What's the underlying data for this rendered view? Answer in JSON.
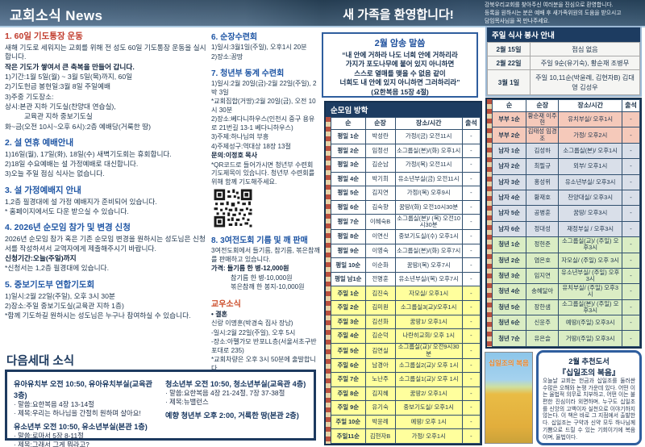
{
  "banner": {
    "left_title": "교회소식 News",
    "center_title": "새 가족을 환영합니다!",
    "right_lines": [
      {
        "t": "강북우리교회를 찾아주신 여러분을 진심으로 환영합니다."
      },
      {
        "t": "등록을 원하시는 분은 예배 후 새가족위원의 도움을 받으시고"
      },
      {
        "t": "담임목사님을 꼭 만나주세요."
      }
    ]
  },
  "left_sections": [
    {
      "heading": "1. 60일 기도통장 운동",
      "lines": [
        {
          "t": "새해 기도로 세워지는 교회를 위해 전 성도 60일 기도통장 운동을 실시합니다.",
          "c": ""
        },
        {
          "t": "작은 기도가 쌓여서 큰 축복을 만들어 갑니다.",
          "c": "bold"
        },
        {
          "t": "1)기간:1월 5일(월) ~ 3월 5일(목)까지, 60일",
          "c": ""
        },
        {
          "t": "2)기도헌금 봉헌일:3월 8일 주일예배",
          "c": ""
        },
        {
          "t": "3)주중 기도장소:",
          "c": ""
        },
        {
          "t": "상시:본관 지하 기도실(찬양대 연습실),",
          "c": ""
        },
        {
          "t": "교육관 지하 중보기도실",
          "c": "indent"
        },
        {
          "t": "화~금(오전 10시~오후 6시):2층 예배당(거룩한 땅)",
          "c": ""
        }
      ]
    },
    {
      "heading": "2. 설 연휴 예배안내",
      "lines": [
        {
          "t": "1)16일(월), 17일(화), 18일(수) 새벽기도회는 휴회합니다.",
          "c": ""
        },
        {
          "t": "2)18일 수요예배는 설 가정예배로 대신합니다.",
          "c": ""
        },
        {
          "t": "3)오늘 주일 점심 식사는 없습니다.",
          "c": ""
        }
      ]
    },
    {
      "heading": "3. 설 가정예배지 안내",
      "lines": [
        {
          "t": "1,2층 필경대에 설 가정 예배지가 준비되어 있습니다.",
          "c": ""
        },
        {
          "t": "* 홈페이지에서도 다운 받으실 수 있습니다.",
          "c": ""
        }
      ]
    },
    {
      "heading": "4. 2026년 순모임 참가 및 변경 신청",
      "lines": [
        {
          "t": "2026년 순모임 참가 혹은 기존 순모임 변경을 원하시는 성도님은 신청서를 작성하셔서 교역자에게 제출해주시기 바랍니다.",
          "c": ""
        },
        {
          "t": "신청기간:오늘(주일)까지",
          "c": "bold"
        },
        {
          "t": "*신청서는 1,2층 필경대에 있습니다.",
          "c": ""
        }
      ]
    },
    {
      "heading": "5. 중보기도부 연합기도회",
      "lines": [
        {
          "t": "1)일시:2월 22일(주일), 오후 3시 30분",
          "c": ""
        },
        {
          "t": "2)장소:주일 중보기도실(교육관 지하 1층)",
          "c": ""
        },
        {
          "t": "*함께 기도하길 원하시는 성도님은 누구나 참여하실 수 있습니다.",
          "c": ""
        }
      ]
    }
  ],
  "mid_sections": [
    {
      "heading": "6. 순장수련회",
      "lines": [
        {
          "t": "1)일시:3월1일(주일), 오후1시 20분",
          "c": ""
        },
        {
          "t": "2)장소:꿈땅",
          "c": ""
        }
      ]
    },
    {
      "heading": "7. 청년부 동계 수련회",
      "lines": [
        {
          "t": "1)일시:2월 20일(금)-2월 22일(주일), 2박 3일",
          "c": ""
        },
        {
          "t": "*교회집합(거땅):2월 20일(금), 오전 10시 30분",
          "c": ""
        },
        {
          "t": "2)장소:베다니하우스(인천시 중구 용유로 21번길 13-1 베다니하우스)",
          "c": ""
        },
        {
          "t": "3)주제:하나님의 부흥",
          "c": ""
        },
        {
          "t": "4)주제성구:역대상 18장 13절",
          "c": ""
        },
        {
          "t": "문의:이정호 목사",
          "c": "bold"
        },
        {
          "t": "*QR코드로 들어가시면 청년부 수련회 기도제목이 있습니다. 청년부 수련회를 위해 함께 기도해주세요.",
          "c": ""
        }
      ]
    }
  ],
  "sale_section": {
    "heading": "8. 3여전도회 기름 및 깨 판매",
    "lines": [
      {
        "t": "3여전도회에서 들기름, 참기름, 볶은참깨를 판매하고 있습니다.",
        "c": ""
      },
      {
        "t": "가격: 들기름 한 병-12,000원",
        "c": "bold"
      },
      {
        "t": "참기름 한 병-10,000원",
        "c": "indent"
      },
      {
        "t": "볶은참깨 한 봉지-10,000원",
        "c": "indent"
      }
    ]
  },
  "friends_news": {
    "heading": "교우소식",
    "lines": [
      {
        "t": "• 결혼",
        "c": "bold"
      },
      {
        "t": "신랑 이명훈(박경숙 집사 장남)",
        "c": ""
      },
      {
        "t": "-일시:2월 22일(주일), 오후 5시",
        "c": ""
      },
      {
        "t": "-장소:아펠가모 반포LL층(서울서초구반포대로 235)",
        "c": ""
      },
      {
        "t": "*교회차량은 오후 3시 50분에 출발합니다.",
        "c": ""
      }
    ]
  },
  "memory_verse": {
    "title": "2월 암송 말씀",
    "lines": [
      {
        "t": "“내 안에 거하라 나도 너희 안에 거하리라"
      },
      {
        "t": "가지가 포도나무에 붙어 있지 아니하면"
      },
      {
        "t": "스스로 열매를 맺을 수 없음 같이"
      },
      {
        "t": "너희도 내 안에 있지 아니하면 그러하리라”"
      },
      {
        "t": "(요한복음 15장 4절)"
      }
    ]
  },
  "meal_table": {
    "title": "주일 식사 봉사 안내",
    "rows": [
      {
        "date": "2월 15일",
        "detail": "점심 없음"
      },
      {
        "date": "2월 22일",
        "detail": "주일 9순(유기숙),  황순재 조병무"
      },
      {
        "date": "3월 1일",
        "detail": "주일 10,11순(박윤례, 김현자B) 김대영 김성우"
      }
    ]
  },
  "center_table": {
    "title": "순모임 방학",
    "headers": {
      "h0": "순",
      "h1": "순장",
      "h2": "장소/시간",
      "h3": "출석"
    },
    "rows": [
      {
        "soon": "평일 1순",
        "leader": "박성란",
        "place": "가정/(금) 오전11시",
        "att": "-",
        "band": "wd"
      },
      {
        "soon": "평일 2순",
        "leader": "임정선",
        "place": "소그룹실(본)/(화) 오후1시",
        "att": "-",
        "band": "wd"
      },
      {
        "soon": "평일 3순",
        "leader": "김순남",
        "place": "가정/(목) 오전11시",
        "att": "-",
        "band": "wd"
      },
      {
        "soon": "평일 4순",
        "leader": "박기희",
        "place": "유소년부실(금) 오전11시",
        "att": "-",
        "band": "wd"
      },
      {
        "soon": "평일 5순",
        "leader": "김지연",
        "place": "가정/(목) 오후9시",
        "att": "-",
        "band": "wd"
      },
      {
        "soon": "평일 6순",
        "leader": "김숙향",
        "place": "꿈땅/(화) 오전10시30분",
        "att": "-",
        "band": "wd"
      },
      {
        "soon": "평일 7순",
        "leader": "이혜숙B",
        "place": "소그룹실(본)/ (목) 오전10시30분",
        "att": "-",
        "band": "wd"
      },
      {
        "soon": "평일 8순",
        "leader": "이연신",
        "place": "중보기도실/(수) 오후1시",
        "att": "-",
        "band": "wd"
      },
      {
        "soon": "평일 9순",
        "leader": "이영숙",
        "place": "소그룹실(본)/(화) 오후7시",
        "att": "-",
        "band": "wd"
      },
      {
        "soon": "평일 10순",
        "leader": "이순화",
        "place": "꿈땅/(목) 오후7시",
        "att": "-",
        "band": "wd"
      },
      {
        "soon": "평일 남1순",
        "leader": "전명훈",
        "place": "유소년부실/(목) 오후7시",
        "att": "-",
        "band": "wd"
      },
      {
        "soon": "주일 1순",
        "leader": "김진숙",
        "place": "자모실/ 오후1시",
        "att": "-",
        "band": "sun"
      },
      {
        "soon": "주일 2순",
        "leader": "김미원",
        "place": "소그룹실3(교)/오후1시",
        "att": "-",
        "band": "sun"
      },
      {
        "soon": "주일 3순",
        "leader": "김선화",
        "place": "꿈땅1/ 오후1시",
        "att": "-",
        "band": "sun"
      },
      {
        "soon": "주일 4순",
        "leader": "김순덕",
        "place": "나란히교회/ 오후 1시",
        "att": "-",
        "band": "sun"
      },
      {
        "soon": "주일 5순",
        "leader": "김연실",
        "place": "소그룹실(교)/ 오전9시30분",
        "att": "-",
        "band": "sun"
      },
      {
        "soon": "주일 6순",
        "leader": "남경아",
        "place": "소그룹실2(교)/ 오후 1시",
        "att": "-",
        "band": "sun"
      },
      {
        "soon": "주일 7순",
        "leader": "노난주",
        "place": "소그룹실1(교)/ 오후 1시",
        "att": "-",
        "band": "sun"
      },
      {
        "soon": "주일 8순",
        "leader": "김지혜",
        "place": "꿈땅2/ 오후1시",
        "att": "-",
        "band": "sun"
      },
      {
        "soon": "주일 9순",
        "leader": "유기숙",
        "place": "중보기도실/ 오후1시",
        "att": "-",
        "band": "sun"
      },
      {
        "soon": "주일 10순",
        "leader": "박윤례",
        "place": "예땅/ 오후 1시",
        "att": "-",
        "band": "sun"
      },
      {
        "soon": "주일11순",
        "leader": "김현자B",
        "place": "가정/ 오후1시",
        "att": "-",
        "band": "sun"
      }
    ]
  },
  "right_table": {
    "headers": {
      "h0": "순",
      "h1": "순장",
      "h2": "장소/시간",
      "h3": "출석"
    },
    "rows": [
      {
        "soon": "부부 1순",
        "leader": "황순재 이주현",
        "place": "유치부실/ 오후1시",
        "att": "-",
        "band": "couple"
      },
      {
        "soon": "부부 2순",
        "leader": "김태성 임경조",
        "place": "가정/ 오후2시",
        "att": "-",
        "band": "couple"
      },
      {
        "soon": "남자 1순",
        "leader": "김성하",
        "place": "소그룹실(본)/ 오후1시",
        "att": "-",
        "band": "men"
      },
      {
        "soon": "남자 2순",
        "leader": "최필규",
        "place": "외부/ 오후1시",
        "att": "-",
        "band": "men"
      },
      {
        "soon": "남자 3순",
        "leader": "홍성위",
        "place": "유소년부실/ 오후3시",
        "att": "-",
        "band": "men"
      },
      {
        "soon": "남자 4순",
        "leader": "황재호",
        "place": "찬양대실/ 오후3시",
        "att": "-",
        "band": "men"
      },
      {
        "soon": "남자 5순",
        "leader": "공병훈",
        "place": "꿈땅/ 오후3시",
        "att": "-",
        "band": "men"
      },
      {
        "soon": "남자 6순",
        "leader": "정대성",
        "place": "재정부실 / 오후3시",
        "att": "-",
        "band": "men"
      },
      {
        "soon": "청년 1순",
        "leader": "정현준",
        "place": "소그룹실(교)/ (주일) 오후3시",
        "att": "-",
        "band": "youth"
      },
      {
        "soon": "청년 2순",
        "leader": "염은호",
        "place": "자모실/ (주일) 오후 3시",
        "att": "-",
        "band": "youth"
      },
      {
        "soon": "청년 3순",
        "leader": "임지연",
        "place": "유소년부실/ (주일) 오후3시",
        "att": "-",
        "band": "youth"
      },
      {
        "soon": "청년 4순",
        "leader": "송혜닮아",
        "place": "유치부실/ (주일) 오후3시",
        "att": "-",
        "band": "youth"
      },
      {
        "soon": "청년 5순",
        "leader": "장한샘",
        "place": "소그룹실(본)/ (주일) 오후3시",
        "att": "-",
        "band": "youth"
      },
      {
        "soon": "청년 6순",
        "leader": "신윤주",
        "place": "예땅/(주일) 오후3시",
        "att": "-",
        "band": "youth"
      },
      {
        "soon": "청년 7순",
        "leader": "유은슬",
        "place": "거땅/(주일) 오후3시",
        "att": "-",
        "band": "youth"
      }
    ]
  },
  "next_gen": {
    "title": "다음세대 소식",
    "groups_left": [
      {
        "head": "유아유치부 오전 10:50, 유아유치부실(교육관 3층)",
        "lines": [
          {
            "t": "· 말씀:요한복음 4장 13-14절"
          },
          {
            "t": "· 제목:우리는 하나님을 간절히 원하며 살아요!"
          }
        ]
      },
      {
        "head": "유소년부 오전 10:50, 유소년부실(본관 1층)",
        "lines": [
          {
            "t": "· 말씀:로마서 5장 8-11절"
          },
          {
            "t": "· 제목:그래서 그게 뭐라고?"
          }
        ]
      }
    ],
    "groups_right": [
      {
        "head": "청소년부 오전 10:50, 청소년부실(교육관 4층)",
        "lines": [
          {
            "t": "· 말씀:요한복음 4장 21-24절, 7장 37-38절"
          },
          {
            "t": "· 제목:뉴밸런스"
          }
        ]
      },
      {
        "head": "예향 청년부 오후 2:00, 거룩한 땅(본관 2층)",
        "lines": []
      }
    ]
  },
  "book": {
    "label": "2월 추천도서",
    "title": "『십일조의 복음』",
    "cover_title": "십일조의 복음",
    "body": "오늘날 교회는 헌금과 십일조를 둘러싼 수많은 오해와 논쟁 가운데 있다. 어떤 이는 율법적 의무로 치부하고, 어떤 이는 불편한 진심이라 외면하며, 누구도 십일조를 신앙의 고백이자 실천으로 이야기하지 않는다. 이 책은 바로 그 지점에서 출발한다. 십일조는 구약과 신약 모두 하나님께 기쁨으로 드릴 수 있는 기회이기에 복음이며, 율법이다."
  },
  "icons": {
    "qr": "qr-code"
  }
}
